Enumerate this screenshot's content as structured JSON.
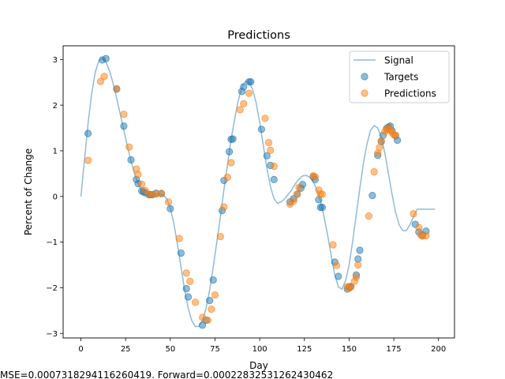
{
  "chart_data": {
    "type": "scatter",
    "title": "Predictions",
    "xlabel": "Day",
    "ylabel": "Percent of Change",
    "xlim": [
      -9.95,
      208.95
    ],
    "ylim": [
      -3.1,
      3.3
    ],
    "xticks": [
      0,
      25,
      50,
      75,
      100,
      125,
      150,
      175,
      200
    ],
    "yticks": [
      -3,
      -2,
      -1,
      0,
      1,
      2,
      3
    ],
    "legend_position": "top-right",
    "footer_text": "MSE=0.0007318294116260419. Forward=0.00022832531262430462",
    "series": [
      {
        "name": "Signal",
        "kind": "line",
        "color": "#1f77b4",
        "x": [
          0,
          2,
          4,
          6,
          8,
          10,
          12,
          14,
          16,
          18,
          20,
          22,
          24,
          26,
          28,
          30,
          32,
          34,
          36,
          38,
          40,
          42,
          44,
          46,
          48,
          50,
          52,
          54,
          56,
          58,
          60,
          62,
          64,
          66,
          68,
          70,
          72,
          74,
          76,
          78,
          80,
          82,
          84,
          86,
          88,
          90,
          92,
          94,
          96,
          98,
          100,
          102,
          104,
          106,
          108,
          110,
          112,
          114,
          116,
          118,
          120,
          122,
          124,
          126,
          128,
          130,
          132,
          134,
          136,
          138,
          140,
          142,
          144,
          146,
          148,
          150,
          152,
          154,
          156,
          158,
          160,
          162,
          164,
          166,
          168,
          170,
          172,
          174,
          176,
          178,
          180,
          182,
          184,
          186,
          188,
          190,
          192,
          194,
          196,
          198
        ],
        "y": [
          0.0,
          0.8,
          1.6,
          2.25,
          2.72,
          2.97,
          3.03,
          2.95,
          2.75,
          2.48,
          2.15,
          1.8,
          1.45,
          1.1,
          0.78,
          0.5,
          0.28,
          0.12,
          0.03,
          0.0,
          0.01,
          0.04,
          0.05,
          0.03,
          -0.05,
          -0.25,
          -0.6,
          -1.05,
          -1.55,
          -2.05,
          -2.45,
          -2.72,
          -2.85,
          -2.85,
          -2.72,
          -2.45,
          -2.05,
          -1.55,
          -1.0,
          -0.45,
          0.15,
          0.7,
          1.25,
          1.7,
          2.1,
          2.38,
          2.52,
          2.5,
          2.35,
          2.05,
          1.62,
          1.12,
          0.62,
          0.22,
          -0.05,
          -0.15,
          -0.12,
          -0.05,
          0.05,
          0.15,
          0.28,
          0.38,
          0.45,
          0.46,
          0.42,
          0.32,
          0.15,
          -0.1,
          -0.45,
          -0.85,
          -1.3,
          -1.72,
          -1.98,
          -2.03,
          -1.85,
          -1.5,
          -0.98,
          -0.4,
          0.18,
          0.72,
          1.15,
          1.45,
          1.55,
          1.5,
          1.3,
          0.95,
          0.5,
          0.05,
          -0.35,
          -0.62,
          -0.75,
          -0.75,
          -0.62,
          -0.45,
          -0.28,
          -0.28,
          -0.28,
          -0.28,
          -0.28,
          -0.28
        ]
      },
      {
        "name": "Targets",
        "kind": "scatter",
        "color": "#1f77b4",
        "x": [
          4,
          12,
          14,
          20,
          24,
          28,
          31,
          32,
          34,
          35,
          36,
          38,
          39,
          40,
          42,
          45,
          50,
          56,
          59,
          60,
          68,
          70,
          72,
          74,
          79,
          80,
          83,
          84,
          85,
          90,
          91,
          94,
          95,
          101,
          104,
          106,
          108,
          117,
          119,
          121,
          123,
          124,
          130,
          131,
          133,
          134,
          135,
          142,
          144,
          149,
          150,
          151,
          154,
          155,
          156,
          163,
          166,
          168,
          169,
          171,
          172,
          173,
          174,
          176,
          177,
          187,
          189,
          191,
          193
        ],
        "y": [
          1.38,
          2.99,
          3.02,
          2.35,
          1.54,
          0.8,
          0.37,
          0.28,
          0.12,
          0.1,
          0.08,
          0.04,
          0.04,
          0.04,
          0.07,
          0.06,
          -0.27,
          -1.24,
          -2.02,
          -2.2,
          -2.82,
          -2.71,
          -2.28,
          -1.83,
          -0.31,
          0.35,
          0.98,
          1.25,
          1.26,
          2.3,
          2.4,
          2.51,
          2.51,
          1.47,
          0.89,
          0.68,
          0.37,
          -0.12,
          -0.05,
          0.05,
          0.18,
          0.26,
          0.43,
          0.37,
          -0.07,
          -0.24,
          -0.24,
          -1.44,
          -1.75,
          -2.03,
          -1.98,
          -1.98,
          -1.72,
          -1.37,
          -1.18,
          0.02,
          0.9,
          1.2,
          1.34,
          1.49,
          1.52,
          1.54,
          1.44,
          1.33,
          1.23,
          -0.61,
          -0.78,
          -0.85,
          -0.76
        ]
      },
      {
        "name": "Predictions",
        "kind": "scatter",
        "color": "#ff7f0e",
        "x": [
          4,
          11,
          13,
          20,
          24,
          27,
          31,
          32,
          34,
          36,
          38,
          40,
          42,
          45,
          49,
          55,
          59,
          61,
          64,
          68,
          71,
          73,
          75,
          78,
          80,
          82,
          84,
          89,
          91,
          94,
          103,
          105,
          106,
          108,
          117,
          119,
          121,
          122,
          130,
          131,
          133,
          134,
          135,
          141,
          143,
          149,
          150,
          151,
          153,
          154,
          155,
          161,
          164,
          166,
          167,
          168,
          170,
          171,
          172,
          173,
          174,
          175,
          176,
          186,
          189,
          190,
          191,
          193
        ],
        "y": [
          0.79,
          2.52,
          2.63,
          2.36,
          1.8,
          1.08,
          0.6,
          0.48,
          0.27,
          0.13,
          0.05,
          0.04,
          0.05,
          0.07,
          -0.12,
          -0.92,
          -1.68,
          -1.86,
          -2.32,
          -2.65,
          -2.71,
          -2.47,
          -2.16,
          -0.88,
          -0.23,
          0.42,
          0.74,
          1.9,
          2.03,
          2.26,
          1.71,
          1.18,
          1.01,
          0.66,
          -0.17,
          -0.1,
          0.05,
          0.2,
          0.45,
          0.43,
          0.14,
          0.05,
          0.05,
          -1.06,
          -1.51,
          -1.98,
          -2.01,
          -1.97,
          -1.86,
          -1.77,
          -1.5,
          -0.43,
          0.54,
          0.95,
          1.07,
          1.22,
          1.42,
          1.47,
          1.5,
          1.46,
          1.4,
          1.35,
          1.34,
          -0.38,
          -0.68,
          -0.84,
          -0.87,
          -0.86
        ]
      }
    ]
  }
}
